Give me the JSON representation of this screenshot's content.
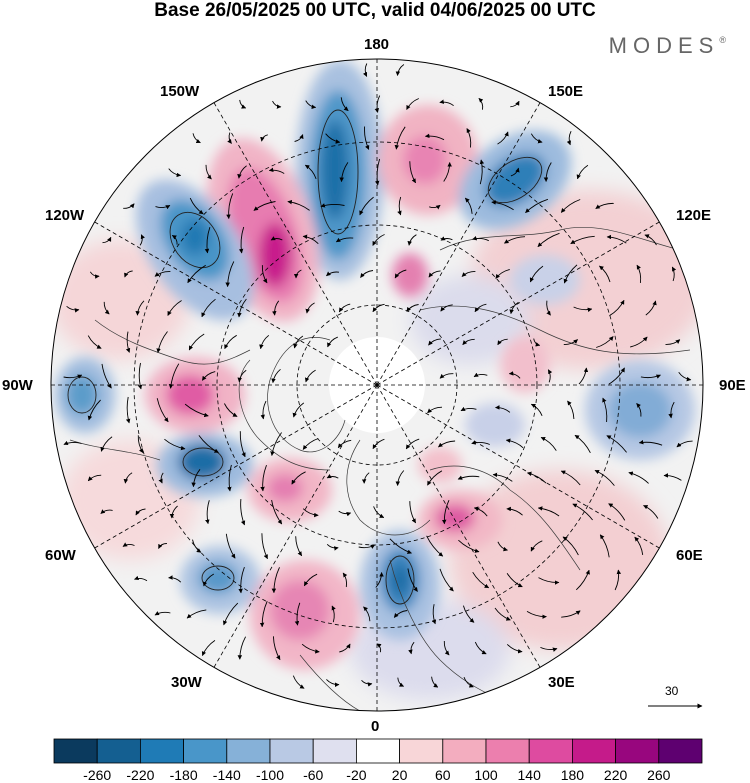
{
  "title": "Base 26/05/2025 00 UTC, valid 04/06/2025 00 UTC",
  "brand": {
    "name": "MODES",
    "mark": "®"
  },
  "longitude_labels": {
    "180": "180",
    "150E": "150E",
    "120E": "120E",
    "90E": "90E",
    "60E": "60E",
    "30E": "30E",
    "0": "0",
    "30W": "30W",
    "60W": "60W",
    "90W": "90W",
    "120W": "120W",
    "150W": "150W"
  },
  "reference_vector": {
    "label": "30"
  },
  "colorbar": {
    "ticks": [
      "-260",
      "-220",
      "-180",
      "-140",
      "-100",
      "-60",
      "-20",
      "20",
      "60",
      "100",
      "140",
      "180",
      "220",
      "260"
    ],
    "colors": [
      "#0b3a5e",
      "#145f91",
      "#1f7bb6",
      "#4996c9",
      "#86b1d8",
      "#b9c9e4",
      "#dfe0ef",
      "#ffffff",
      "#f8d6d8",
      "#f3adbf",
      "#ec7fae",
      "#de4ba0",
      "#c51b8a",
      "#98067e",
      "#5e0070"
    ]
  },
  "colors": {
    "land": "#e2e2e2",
    "coast": "#3a3a3a",
    "grid": "#000000"
  }
}
